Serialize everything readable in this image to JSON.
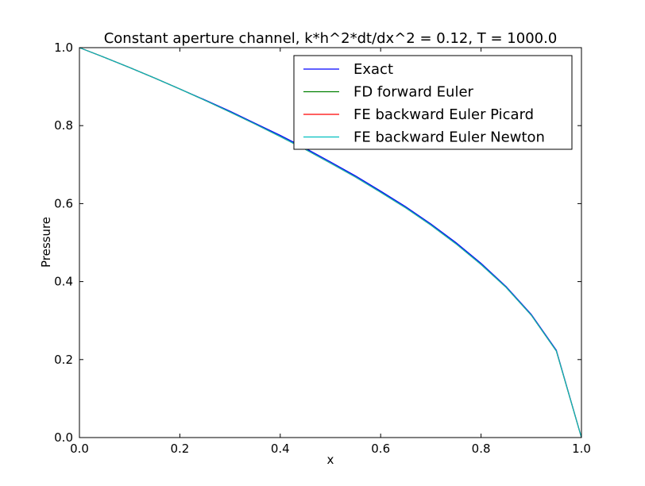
{
  "chart_data": {
    "type": "line",
    "title": "Constant aperture channel, k*h^2*dt/dx^2 = 0.12, T = 1000.0",
    "xlabel": "x",
    "ylabel": "Pressure",
    "xlim": [
      0.0,
      1.0
    ],
    "ylim": [
      0.0,
      1.0
    ],
    "xticks": [
      "0.0",
      "0.2",
      "0.4",
      "0.6",
      "0.8",
      "1.0"
    ],
    "yticks": [
      "0.0",
      "0.2",
      "0.4",
      "0.6",
      "0.8",
      "1.0"
    ],
    "grid": false,
    "legend_position": "top-right",
    "x": [
      0.0,
      0.05,
      0.1,
      0.15,
      0.2,
      0.25,
      0.3,
      0.35,
      0.4,
      0.45,
      0.5,
      0.55,
      0.6,
      0.65,
      0.7,
      0.75,
      0.8,
      0.85,
      0.9,
      0.95,
      1.0
    ],
    "series": [
      {
        "name": "Exact",
        "color": "#0000ff",
        "values": [
          1.0,
          0.975,
          0.949,
          0.922,
          0.894,
          0.866,
          0.837,
          0.806,
          0.775,
          0.742,
          0.707,
          0.671,
          0.632,
          0.592,
          0.548,
          0.5,
          0.447,
          0.387,
          0.316,
          0.224,
          0.0
        ]
      },
      {
        "name": "FD forward Euler",
        "color": "#008000",
        "values": [
          1.0,
          0.975,
          0.949,
          0.922,
          0.894,
          0.865,
          0.835,
          0.804,
          0.772,
          0.739,
          0.704,
          0.668,
          0.629,
          0.589,
          0.545,
          0.497,
          0.444,
          0.385,
          0.314,
          0.222,
          0.0
        ]
      },
      {
        "name": "FE backward Euler Picard",
        "color": "#ff0000",
        "values": [
          1.0,
          0.975,
          0.949,
          0.922,
          0.894,
          0.865,
          0.835,
          0.804,
          0.772,
          0.739,
          0.704,
          0.668,
          0.629,
          0.589,
          0.545,
          0.497,
          0.444,
          0.385,
          0.314,
          0.222,
          0.0
        ]
      },
      {
        "name": "FE backward Euler Newton",
        "color": "#00bfbf",
        "values": [
          1.0,
          0.975,
          0.949,
          0.922,
          0.894,
          0.865,
          0.835,
          0.804,
          0.772,
          0.739,
          0.704,
          0.668,
          0.629,
          0.589,
          0.545,
          0.497,
          0.444,
          0.385,
          0.314,
          0.222,
          0.0
        ]
      }
    ]
  }
}
